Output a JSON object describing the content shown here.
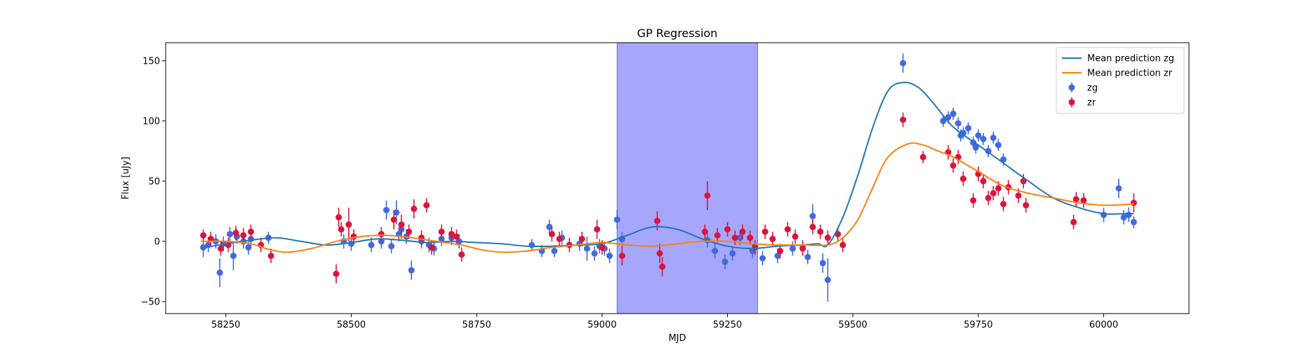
{
  "chart_data": {
    "type": "line",
    "title": "GP Regression",
    "xlabel": "MJD",
    "ylabel": "Flux [uJy]",
    "xlim": [
      58130,
      60170
    ],
    "ylim": [
      -60,
      165
    ],
    "xticks": [
      58250,
      58500,
      58750,
      59000,
      59250,
      59500,
      59750,
      60000
    ],
    "yticks": [
      -50,
      0,
      50,
      100,
      150
    ],
    "shaded_region": {
      "x0": 59030,
      "x1": 59310,
      "color": "#a6a6fb"
    },
    "legend_position": "upper right",
    "legend": [
      {
        "label": "Mean prediction zg",
        "kind": "line",
        "color": "#1f77b4"
      },
      {
        "label": "Mean prediction zr",
        "kind": "line",
        "color": "#ff7f0e"
      },
      {
        "label": "zg",
        "kind": "errorbar",
        "color": "#4169e1"
      },
      {
        "label": "zr",
        "kind": "errorbar",
        "color": "#dc143c"
      }
    ],
    "series": [
      {
        "name": "Mean prediction zg",
        "kind": "line",
        "color": "#1f77b4",
        "x": [
          58200,
          58250,
          58300,
          58350,
          58400,
          58450,
          58500,
          58550,
          58600,
          58650,
          58700,
          58750,
          58800,
          58850,
          58900,
          58950,
          59000,
          59050,
          59100,
          59150,
          59200,
          59250,
          59300,
          59350,
          59400,
          59430,
          59450,
          59480,
          59510,
          59540,
          59570,
          59600,
          59630,
          59660,
          59700,
          59750,
          59800,
          59850,
          59900,
          59950,
          60000,
          60040,
          60060
        ],
        "y": [
          -6,
          -2,
          1,
          3,
          0,
          -3,
          -1,
          2,
          1,
          -1,
          0,
          -1,
          -2,
          -4,
          -4,
          -3,
          -2,
          5,
          12,
          10,
          2,
          -4,
          -6,
          -4,
          -3,
          -2,
          -3,
          20,
          55,
          95,
          125,
          132,
          128,
          115,
          95,
          80,
          65,
          50,
          36,
          28,
          23,
          23,
          23
        ]
      },
      {
        "name": "Mean prediction zr",
        "kind": "line",
        "color": "#ff7f0e",
        "x": [
          58200,
          58250,
          58300,
          58330,
          58370,
          58420,
          58470,
          58520,
          58570,
          58620,
          58670,
          58720,
          58760,
          58800,
          58850,
          58900,
          58950,
          59000,
          59050,
          59100,
          59150,
          59200,
          59250,
          59300,
          59350,
          59400,
          59450,
          59480,
          59510,
          59540,
          59570,
          59610,
          59640,
          59670,
          59700,
          59750,
          59800,
          59850,
          59900,
          59950,
          60000,
          60060
        ],
        "y": [
          0,
          0,
          -2,
          -6,
          -9,
          -6,
          0,
          4,
          5,
          3,
          0,
          -3,
          -7,
          -9,
          -8,
          -5,
          -3,
          -1,
          -3,
          -4,
          -2,
          0,
          0,
          -2,
          -3,
          -3,
          -3,
          3,
          18,
          45,
          70,
          81,
          80,
          75,
          70,
          58,
          46,
          40,
          36,
          32,
          30,
          31
        ]
      },
      {
        "name": "zg",
        "kind": "errorbar",
        "color": "#4169e1",
        "x": [
          58205,
          58215,
          58230,
          58238,
          58245,
          58258,
          58265,
          58272,
          58285,
          58295,
          58300,
          58335,
          58485,
          58500,
          58540,
          58560,
          58570,
          58580,
          58590,
          58595,
          58600,
          58610,
          58620,
          58640,
          58655,
          58665,
          58680,
          58700,
          58715,
          58860,
          58880,
          58895,
          58905,
          58920,
          58955,
          58970,
          58985,
          58995,
          59005,
          59015,
          59030,
          59040,
          59210,
          59225,
          59245,
          59260,
          59275,
          59300,
          59320,
          59350,
          59380,
          59400,
          59410,
          59420,
          59440,
          59450,
          59600,
          59680,
          59690,
          59700,
          59710,
          59715,
          59720,
          59730,
          59740,
          59745,
          59750,
          59760,
          59770,
          59780,
          59790,
          59800,
          60000,
          60030,
          60040,
          60050,
          60060
        ],
        "y": [
          -5,
          -3,
          0,
          -26,
          -2,
          6,
          -12,
          4,
          0,
          -5,
          2,
          3,
          0,
          -2,
          -3,
          0,
          26,
          -4,
          24,
          6,
          10,
          4,
          -24,
          0,
          -3,
          -6,
          2,
          3,
          0,
          -3,
          -8,
          12,
          -8,
          3,
          -2,
          -6,
          -10,
          -4,
          -6,
          -12,
          18,
          2,
          1,
          -8,
          -17,
          -10,
          3,
          -8,
          -14,
          -12,
          -6,
          -5,
          -13,
          21,
          -18,
          -32,
          148,
          100,
          103,
          106,
          98,
          88,
          90,
          94,
          82,
          78,
          88,
          85,
          75,
          86,
          80,
          68,
          22,
          44,
          20,
          22,
          16
        ],
        "yerr": [
          8,
          6,
          6,
          12,
          6,
          6,
          12,
          6,
          6,
          6,
          6,
          5,
          6,
          6,
          6,
          6,
          8,
          6,
          10,
          6,
          8,
          6,
          8,
          6,
          6,
          6,
          6,
          6,
          6,
          5,
          5,
          6,
          5,
          6,
          6,
          10,
          6,
          6,
          6,
          6,
          8,
          6,
          6,
          6,
          6,
          6,
          6,
          6,
          6,
          6,
          6,
          6,
          6,
          10,
          8,
          18,
          8,
          5,
          5,
          5,
          5,
          5,
          5,
          5,
          5,
          5,
          5,
          5,
          5,
          5,
          5,
          5,
          6,
          8,
          6,
          6,
          5
        ]
      },
      {
        "name": "zr",
        "kind": "errorbar",
        "color": "#dc143c",
        "x": [
          58205,
          58220,
          58240,
          58255,
          58270,
          58285,
          58300,
          58320,
          58340,
          58470,
          58475,
          58480,
          58495,
          58505,
          58560,
          58585,
          58600,
          58615,
          58625,
          58640,
          58650,
          58660,
          58680,
          58700,
          58710,
          58720,
          58900,
          58915,
          58935,
          58960,
          58990,
          59000,
          59040,
          59110,
          59115,
          59120,
          59205,
          59210,
          59230,
          59250,
          59265,
          59280,
          59295,
          59305,
          59325,
          59340,
          59355,
          59370,
          59385,
          59400,
          59420,
          59435,
          59450,
          59470,
          59480,
          59600,
          59640,
          59690,
          59700,
          59710,
          59720,
          59740,
          59750,
          59760,
          59770,
          59780,
          59790,
          59800,
          59810,
          59830,
          59840,
          59845,
          59940,
          59945,
          59960,
          60060
        ],
        "y": [
          5,
          2,
          -6,
          -3,
          7,
          5,
          8,
          -3,
          -12,
          -27,
          20,
          10,
          14,
          4,
          6,
          18,
          14,
          8,
          27,
          3,
          30,
          -5,
          8,
          6,
          4,
          -11,
          6,
          2,
          -3,
          2,
          10,
          -5,
          -12,
          17,
          -10,
          -21,
          8,
          38,
          5,
          10,
          3,
          8,
          3,
          -5,
          8,
          2,
          -8,
          10,
          4,
          -6,
          12,
          8,
          3,
          6,
          -3,
          101,
          70,
          74,
          63,
          70,
          52,
          34,
          56,
          50,
          36,
          40,
          44,
          31,
          45,
          38,
          50,
          30,
          16,
          35,
          34,
          32
        ],
        "yerr": [
          5,
          6,
          6,
          6,
          6,
          6,
          6,
          6,
          6,
          8,
          8,
          6,
          14,
          6,
          6,
          8,
          8,
          6,
          8,
          6,
          6,
          6,
          6,
          6,
          6,
          6,
          6,
          6,
          6,
          6,
          8,
          6,
          8,
          8,
          8,
          8,
          6,
          12,
          6,
          6,
          6,
          6,
          6,
          6,
          6,
          6,
          6,
          6,
          6,
          6,
          6,
          6,
          6,
          6,
          6,
          6,
          5,
          6,
          6,
          6,
          6,
          6,
          6,
          6,
          6,
          6,
          6,
          6,
          6,
          6,
          6,
          6,
          6,
          6,
          6,
          8
        ]
      }
    ]
  }
}
